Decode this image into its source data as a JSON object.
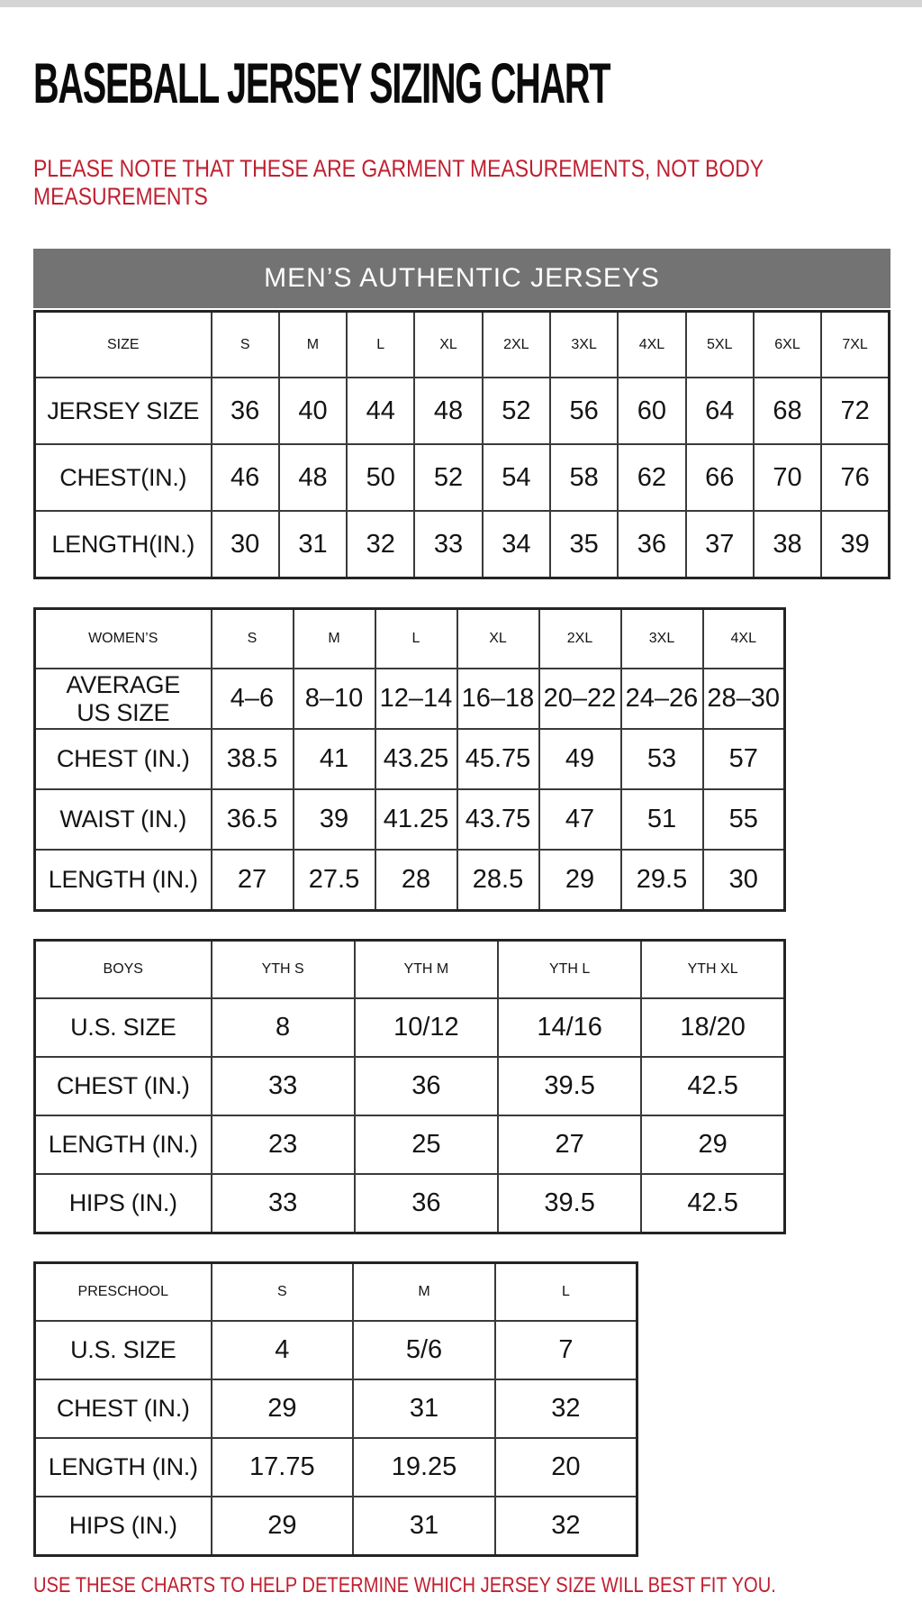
{
  "page": {
    "title": "BASEBALL JERSEY SIZING CHART",
    "note": "PLEASE NOTE THAT THESE ARE GARMENT MEASUREMENTS, NOT BODY\nMEASUREMENTS",
    "footer": "USE THESE CHARTS TO HELP DETERMINE WHICH JERSEY SIZE WILL BEST FIT YOU.",
    "colors": {
      "accent_red": "#c01f30",
      "header_gray": "#737373",
      "table_border": "#3a3a3a"
    }
  },
  "mens_banner": "MEN’S AUTHENTIC JERSEYS",
  "tables": {
    "mens": {
      "columns": [
        "SIZE",
        "S",
        "M",
        "L",
        "XL",
        "2XL",
        "3XL",
        "4XL",
        "5XL",
        "6XL",
        "7XL"
      ],
      "rows": [
        [
          "JERSEY SIZE",
          "36",
          "40",
          "44",
          "48",
          "52",
          "56",
          "60",
          "64",
          "68",
          "72"
        ],
        [
          "CHEST(IN.)",
          "46",
          "48",
          "50",
          "52",
          "54",
          "58",
          "62",
          "66",
          "70",
          "76"
        ],
        [
          "LENGTH(IN.)",
          "30",
          "31",
          "32",
          "33",
          "34",
          "35",
          "36",
          "37",
          "38",
          "39"
        ]
      ]
    },
    "womens": {
      "columns": [
        "WOMEN’S",
        "S",
        "M",
        "L",
        "XL",
        "2XL",
        "3XL",
        "4XL"
      ],
      "rows": [
        [
          "AVERAGE\nUS SIZE",
          "4–6",
          "8–10",
          "12–14",
          "16–18",
          "20–22",
          "24–26",
          "28–30"
        ],
        [
          "CHEST (IN.)",
          "38.5",
          "41",
          "43.25",
          "45.75",
          "49",
          "53",
          "57"
        ],
        [
          "WAIST (IN.)",
          "36.5",
          "39",
          "41.25",
          "43.75",
          "47",
          "51",
          "55"
        ],
        [
          "LENGTH (IN.)",
          "27",
          "27.5",
          "28",
          "28.5",
          "29",
          "29.5",
          "30"
        ]
      ]
    },
    "boys": {
      "columns": [
        "BOYS",
        "YTH S",
        "YTH M",
        "YTH L",
        "YTH XL"
      ],
      "rows": [
        [
          "U.S. SIZE",
          "8",
          "10/12",
          "14/16",
          "18/20"
        ],
        [
          "CHEST (IN.)",
          "33",
          "36",
          "39.5",
          "42.5"
        ],
        [
          "LENGTH (IN.)",
          "23",
          "25",
          "27",
          "29"
        ],
        [
          "HIPS (IN.)",
          "33",
          "36",
          "39.5",
          "42.5"
        ]
      ]
    },
    "preschool": {
      "columns": [
        "PRESCHOOL",
        "S",
        "M",
        "L"
      ],
      "rows": [
        [
          "U.S. SIZE",
          "4",
          "5/6",
          "7"
        ],
        [
          "CHEST (IN.)",
          "29",
          "31",
          "32"
        ],
        [
          "LENGTH (IN.)",
          "17.75",
          "19.25",
          "20"
        ],
        [
          "HIPS (IN.)",
          "29",
          "31",
          "32"
        ]
      ]
    }
  }
}
